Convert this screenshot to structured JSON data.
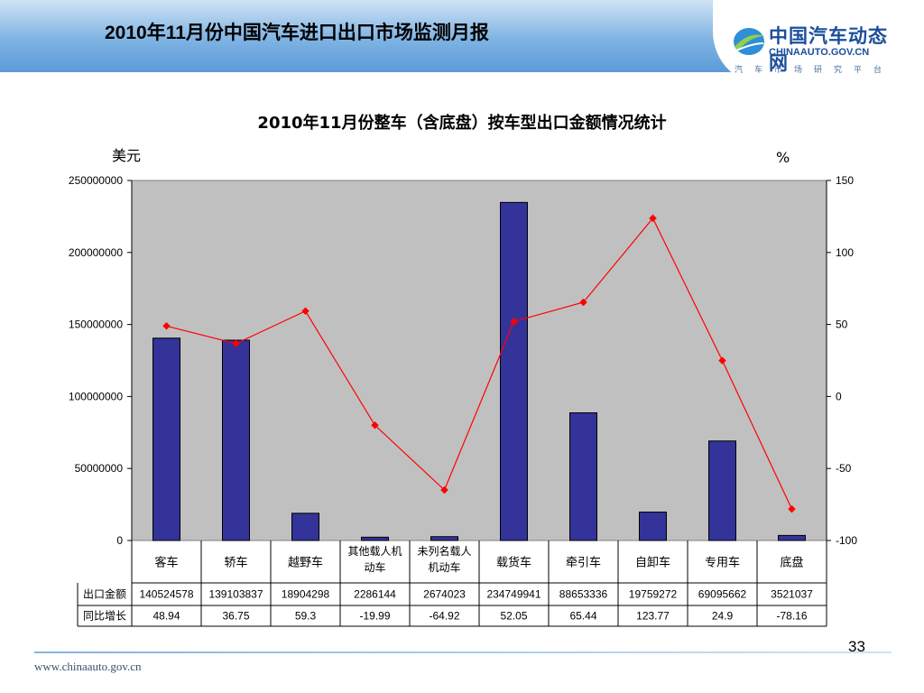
{
  "header": {
    "title": "2010年11月份中国汽车进口出口市场监测月报",
    "logo_main": "中国汽车动态网",
    "logo_sub": "CHINAAUTO.GOV.CN",
    "logo_tagline": "汽车市场研究平台"
  },
  "footer": {
    "url": "www.chinaauto.gov.cn",
    "page_number": "33"
  },
  "colors": {
    "bar": "#333399",
    "line": "#ff0000",
    "plot_bg": "#c0c0c0"
  },
  "chart_data": {
    "type": "bar",
    "title": "2010年11月份整车（含底盘）按车型出口金额情况统计",
    "ylabel": "美元",
    "y2label": "%",
    "ylim": [
      0,
      250000000
    ],
    "yticks": [
      "0",
      "50000000",
      "100000000",
      "150000000",
      "200000000",
      "250000000"
    ],
    "y2lim": [
      -100,
      150
    ],
    "y2ticks": [
      "-100",
      "-50",
      "0",
      "50",
      "100",
      "150"
    ],
    "grid": false,
    "categories": [
      "客车",
      "轿车",
      "越野车",
      "其他载人机动车",
      "未列名载人机动车",
      "载货车",
      "牵引车",
      "自卸车",
      "专用车",
      "底盘"
    ],
    "category_lines": [
      [
        "客车"
      ],
      [
        "轿车"
      ],
      [
        "越野车"
      ],
      [
        "其他载人机",
        "动车"
      ],
      [
        "未列名载人",
        "机动车"
      ],
      [
        "载货车"
      ],
      [
        "牵引车"
      ],
      [
        "自卸车"
      ],
      [
        "专用车"
      ],
      [
        "底盘"
      ]
    ],
    "series": [
      {
        "name": "出口金额",
        "type": "bar",
        "axis": "left",
        "values": [
          140524578,
          139103837,
          18904298,
          2286144,
          2674023,
          234749941,
          88653336,
          19759272,
          69095662,
          3521037
        ],
        "labels": [
          "140524578",
          "139103837",
          "18904298",
          "2286144",
          "2674023",
          "234749941",
          "88653336",
          "19759272",
          "69095662",
          "3521037"
        ]
      },
      {
        "name": "同比增长",
        "type": "line",
        "axis": "right",
        "values": [
          48.94,
          36.75,
          59.3,
          -19.99,
          -64.92,
          52.05,
          65.44,
          123.77,
          24.9,
          -78.16
        ],
        "labels": [
          "48.94",
          "36.75",
          "59.3",
          "-19.99",
          "-64.92",
          "52.05",
          "65.44",
          "123.77",
          "24.9",
          "-78.16"
        ]
      }
    ]
  }
}
